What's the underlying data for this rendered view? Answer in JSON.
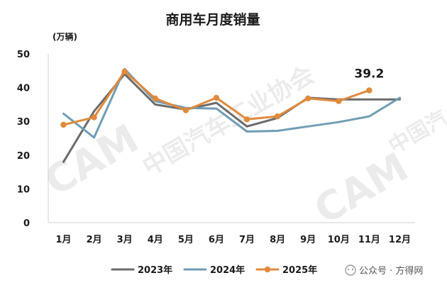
{
  "chart_data": {
    "type": "line",
    "title": "商用车月度销量",
    "unit_label": "(万辆)",
    "categories": [
      "1月",
      "2月",
      "3月",
      "4月",
      "5月",
      "6月",
      "7月",
      "8月",
      "9月",
      "10月",
      "11月",
      "12月"
    ],
    "ylim": [
      0,
      50
    ],
    "yticks": [
      "0",
      "10",
      "20",
      "30",
      "40",
      "50"
    ],
    "grid": false,
    "legend_position": "bottom",
    "series": [
      {
        "name": "2023年",
        "color": "#6b6b6b",
        "marker": "none",
        "values": [
          18.0,
          33.0,
          44.0,
          35.0,
          33.5,
          35.5,
          28.5,
          31.0,
          37.0,
          36.5,
          36.5,
          36.5
        ]
      },
      {
        "name": "2024年",
        "color": "#6f9db3",
        "marker": "none",
        "values": [
          32.3,
          25.2,
          45.5,
          36.0,
          34.0,
          33.8,
          27.0,
          27.2,
          28.5,
          29.8,
          31.5,
          37.0
        ]
      },
      {
        "name": "2025年",
        "color": "#e08a3c",
        "marker": "circle",
        "values": [
          29.0,
          31.2,
          44.8,
          36.8,
          33.3,
          37.0,
          30.6,
          31.5,
          36.8,
          36.0,
          39.2,
          null
        ]
      }
    ],
    "annotations": [
      {
        "series": "2025年",
        "category": "11月",
        "text": "39.2"
      }
    ]
  },
  "watermark": {
    "org_name": "中国汽车工业协会",
    "short_name": "中国汽",
    "logo_text": "CAM"
  },
  "footer": {
    "source_text": "公众号 · 方得网"
  }
}
